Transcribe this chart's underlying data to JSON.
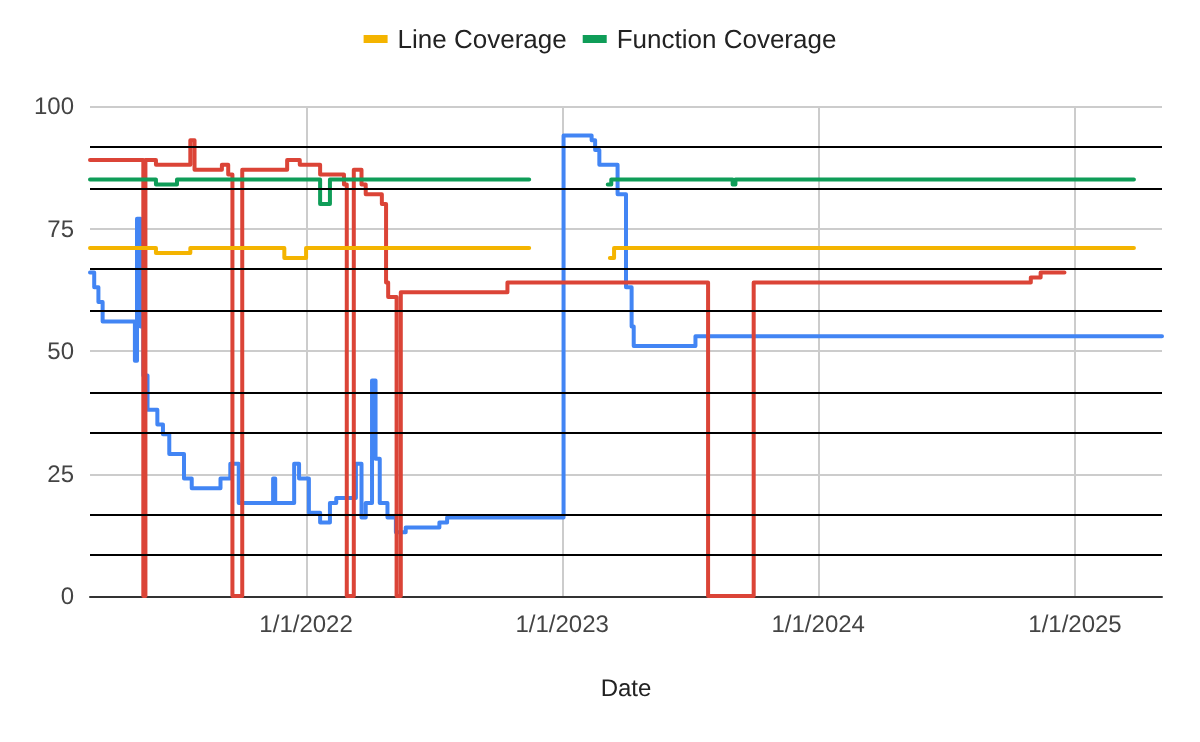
{
  "chart_data": {
    "type": "step",
    "xlabel": "Date",
    "legend": "top",
    "grid": true,
    "marker": "none",
    "line_style": "solid",
    "xlim": [
      "2021-02-27",
      "2025-05-05"
    ],
    "ylim": [
      0,
      100
    ],
    "yticks": [
      0,
      25,
      50,
      75,
      100
    ],
    "xticks": [
      {
        "value": "2022-01-01",
        "label": "1/1/2022"
      },
      {
        "value": "2023-01-01",
        "label": "1/1/2023"
      },
      {
        "value": "2024-01-01",
        "label": "1/1/2024"
      },
      {
        "value": "2025-01-01",
        "label": "1/1/2025"
      }
    ],
    "ref_lines": [
      {
        "axis": "y",
        "value": 8.33,
        "color": "#000000"
      },
      {
        "axis": "y",
        "value": 16.67,
        "color": "#000000"
      },
      {
        "axis": "y",
        "value": 33.33,
        "color": "#000000"
      },
      {
        "axis": "y",
        "value": 41.67,
        "color": "#000000"
      },
      {
        "axis": "y",
        "value": 58.33,
        "color": "#000000"
      },
      {
        "axis": "y",
        "value": 66.67,
        "color": "#000000"
      },
      {
        "axis": "y",
        "value": 83.33,
        "color": "#000000"
      },
      {
        "axis": "y",
        "value": 91.67,
        "color": "#000000"
      }
    ],
    "series": [
      {
        "color": "#4285f4",
        "x": [
          "2021-02-27",
          "2021-03-05",
          "2021-03-11",
          "2021-03-17",
          "2021-05-02",
          "2021-05-05",
          "2021-05-10",
          "2021-05-14",
          "2021-05-20",
          "2021-06-03",
          "2021-06-11",
          "2021-06-20",
          "2021-07-11",
          "2021-07-22",
          "2021-09-01",
          "2021-09-15",
          "2021-09-27",
          "2021-11-15",
          "2021-11-18",
          "2021-12-15",
          "2021-12-22",
          "2022-01-05",
          "2022-01-21",
          "2022-02-04",
          "2022-02-13",
          "2022-03-13",
          "2022-03-21",
          "2022-03-27",
          "2022-04-05",
          "2022-04-10",
          "2022-04-16",
          "2022-04-27",
          "2022-05-09",
          "2022-05-23",
          "2022-07-10",
          "2022-07-21",
          "2023-01-03",
          "2023-02-12",
          "2023-02-17",
          "2023-02-23",
          "2023-03-21",
          "2023-04-02",
          "2023-04-10",
          "2023-04-13",
          "2023-07-10",
          "2025-05-05"
        ],
        "values": [
          66,
          63,
          60,
          56,
          48,
          77,
          55,
          45,
          38,
          35,
          33,
          29,
          24,
          22,
          24,
          27,
          19,
          24,
          19,
          27,
          24,
          17,
          15,
          19,
          20,
          27,
          16,
          19,
          44,
          28,
          19,
          16,
          13,
          14,
          15,
          16,
          94,
          93,
          91,
          88,
          82,
          63,
          55,
          51,
          53,
          53
        ]
      },
      {
        "color": "#db4437",
        "x": [
          "2021-02-27",
          "2021-05-14",
          "2021-05-17",
          "2021-06-01",
          "2021-07-20",
          "2021-07-26",
          "2021-09-03",
          "2021-09-12",
          "2021-09-18",
          "2021-10-02",
          "2021-12-05",
          "2021-12-23",
          "2022-01-21",
          "2022-02-24",
          "2022-02-28",
          "2022-03-10",
          "2022-03-21",
          "2022-03-27",
          "2022-04-19",
          "2022-04-25",
          "2022-04-28",
          "2022-05-10",
          "2022-05-16",
          "2022-10-15",
          "2023-07-28",
          "2023-10-01",
          "2024-10-30",
          "2024-11-13",
          "2024-12-17"
        ],
        "values": [
          89,
          0,
          89,
          88,
          93,
          87,
          88,
          86,
          0,
          87,
          89,
          88,
          86,
          84,
          0,
          87,
          84,
          82,
          80,
          64,
          61,
          0,
          62,
          64,
          0,
          64,
          65,
          66,
          66
        ]
      },
      {
        "name": "Line Coverage",
        "color": "#f4b400",
        "x": [
          "2021-02-27",
          "2021-06-01",
          "2021-07-20",
          "2021-12-01",
          "2022-01-01",
          "2022-10-28",
          "2022-11-15",
          "2023-03-10",
          "2023-03-16",
          "2024-06-01",
          "2025-03-26"
        ],
        "values": [
          71,
          70,
          71,
          69,
          71,
          71,
          null,
          69,
          71,
          71,
          71
        ]
      },
      {
        "name": "Function Coverage",
        "color": "#0f9d58",
        "x": [
          "2021-02-27",
          "2021-06-01",
          "2021-07-01",
          "2022-01-21",
          "2022-02-04",
          "2022-10-28",
          "2022-11-15",
          "2023-03-07",
          "2023-03-12",
          "2023-09-01",
          "2023-09-05",
          "2025-03-26"
        ],
        "values": [
          85,
          84,
          85,
          80,
          85,
          85,
          null,
          84,
          85,
          84,
          85,
          85
        ]
      }
    ]
  }
}
